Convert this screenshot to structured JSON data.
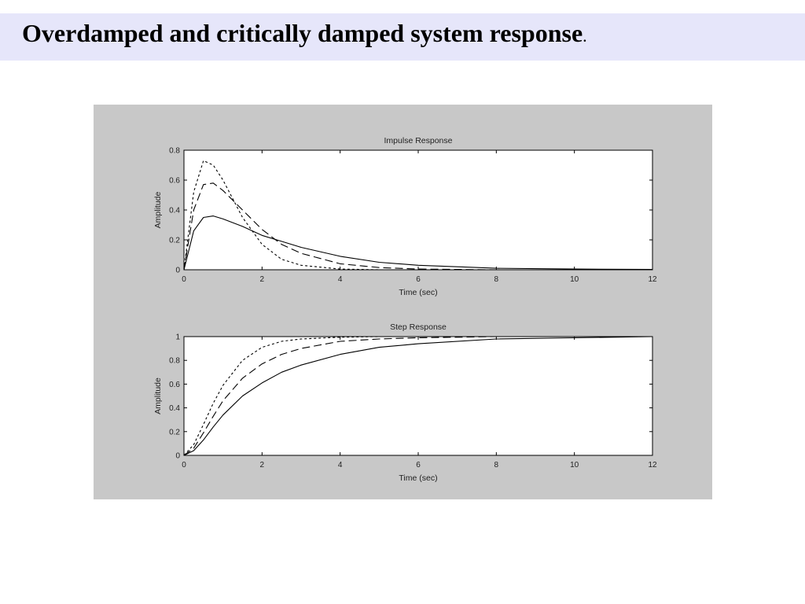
{
  "slide": {
    "title": "Overdamped and critically damped system response",
    "title_period": "."
  },
  "colors": {
    "header_bg": "#e6e6fa",
    "figure_bg": "#c8c8c8",
    "axes_bg": "#ffffff",
    "line": "#000000"
  },
  "chart_data": [
    {
      "type": "line",
      "title": "Impulse Response",
      "xlabel": "Time (sec)",
      "ylabel": "Amplitude",
      "xlim": [
        0,
        12
      ],
      "ylim": [
        0,
        0.8
      ],
      "xticks": [
        "0",
        "2",
        "4",
        "6",
        "8",
        "10",
        "12"
      ],
      "yticks": [
        "0",
        "0.2",
        "0.4",
        "0.6",
        "0.8"
      ],
      "grid": false,
      "x": [
        0,
        0.25,
        0.5,
        0.75,
        1,
        1.5,
        2,
        2.5,
        3,
        4,
        5,
        6,
        8,
        10,
        12
      ],
      "series": [
        {
          "style": "solid",
          "values": [
            0,
            0.26,
            0.35,
            0.36,
            0.34,
            0.29,
            0.23,
            0.19,
            0.15,
            0.09,
            0.05,
            0.03,
            0.01,
            0.005,
            0.002
          ]
        },
        {
          "style": "dashed",
          "values": [
            0,
            0.4,
            0.57,
            0.58,
            0.53,
            0.4,
            0.27,
            0.17,
            0.11,
            0.04,
            0.015,
            0.005,
            0,
            0,
            0
          ]
        },
        {
          "style": "dotted",
          "values": [
            0,
            0.52,
            0.73,
            0.7,
            0.6,
            0.35,
            0.17,
            0.07,
            0.03,
            0.005,
            0,
            0,
            0,
            0,
            0
          ]
        }
      ]
    },
    {
      "type": "line",
      "title": "Step Response",
      "xlabel": "Time (sec)",
      "ylabel": "Amplitude",
      "xlim": [
        0,
        12
      ],
      "ylim": [
        0,
        1
      ],
      "xticks": [
        "0",
        "2",
        "4",
        "6",
        "8",
        "10",
        "12"
      ],
      "yticks": [
        "0",
        "0.2",
        "0.4",
        "0.6",
        "0.8",
        "1"
      ],
      "grid": false,
      "x": [
        0,
        0.25,
        0.5,
        0.75,
        1,
        1.5,
        2,
        2.5,
        3,
        4,
        5,
        6,
        8,
        10,
        12
      ],
      "series": [
        {
          "style": "solid",
          "values": [
            0,
            0.04,
            0.13,
            0.24,
            0.34,
            0.5,
            0.61,
            0.7,
            0.76,
            0.85,
            0.91,
            0.94,
            0.98,
            0.99,
            1.0
          ]
        },
        {
          "style": "dashed",
          "values": [
            0,
            0.06,
            0.19,
            0.33,
            0.46,
            0.65,
            0.77,
            0.85,
            0.9,
            0.96,
            0.98,
            0.99,
            1.0,
            1.0,
            1.0
          ]
        },
        {
          "style": "dotted",
          "values": [
            0,
            0.09,
            0.26,
            0.44,
            0.59,
            0.8,
            0.91,
            0.96,
            0.98,
            0.995,
            1.0,
            1.0,
            1.0,
            1.0,
            1.0
          ]
        }
      ]
    }
  ]
}
